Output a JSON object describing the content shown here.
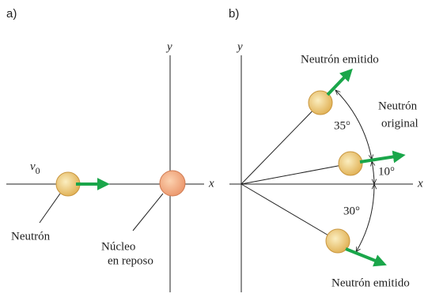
{
  "panels": [
    {
      "label": "a)",
      "axis_y": "y",
      "axis_x": "x",
      "velocity_symbol": "v",
      "velocity_subscript": "0",
      "neutron_label": "Neutrón",
      "nucleus_label": [
        "Núcleo",
        "en reposo"
      ]
    },
    {
      "label": "b)",
      "axis_y": "y",
      "axis_x": "x",
      "upper_label": "Neutrón emitido",
      "original_label": [
        "Neutrón",
        "original"
      ],
      "lower_label": "Neutrón emitido",
      "angles": [
        "35°",
        "10°",
        "30°"
      ]
    }
  ]
}
